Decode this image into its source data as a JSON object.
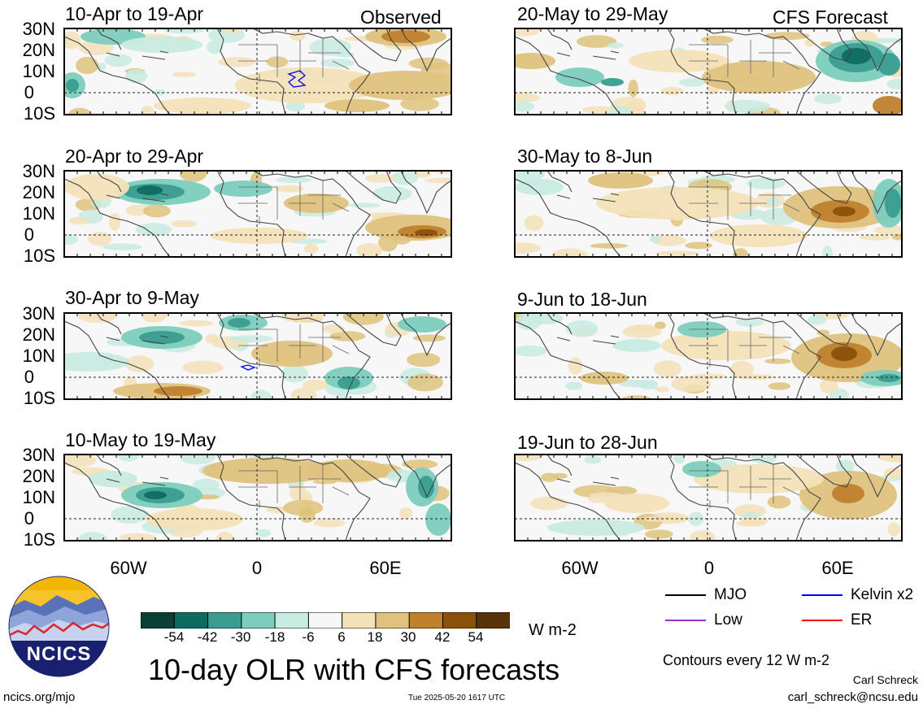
{
  "figure": {
    "title": "10-day OLR with CFS forecasts",
    "units": "W m-2",
    "contour_note": "Contours every 12 W m-2",
    "author": "Carl Schreck",
    "email": "carl_schreck@ncsu.edu",
    "site": "ncics.org/mjo",
    "timestamp": "Tue 2025-05-20 1617 UTC",
    "logo_text": "NCICS"
  },
  "labels": {
    "observed": "Observed",
    "forecast": "CFS Forecast",
    "lat_ticks": [
      "30N",
      "20N",
      "10N",
      "0",
      "10S"
    ],
    "lon_ticks": [
      "60W",
      "0",
      "60E"
    ]
  },
  "panels_observed": [
    {
      "title": "10-Apr to 19-Apr"
    },
    {
      "title": "20-Apr to 29-Apr"
    },
    {
      "title": "30-Apr to 9-May"
    },
    {
      "title": "10-May to 19-May"
    }
  ],
  "panels_forecast": [
    {
      "title": "20-May to 29-May"
    },
    {
      "title": "30-May to 8-Jun"
    },
    {
      "title": "9-Jun to 18-Jun"
    },
    {
      "title": "19-Jun to 28-Jun"
    }
  ],
  "colorbar": {
    "tick_labels": [
      "-54",
      "-42",
      "-30",
      "-18",
      "-6",
      "6",
      "18",
      "30",
      "42",
      "54"
    ],
    "colors": [
      "#0a3f36",
      "#0e6b60",
      "#3a9d8f",
      "#7ccdbd",
      "#c8ebe2",
      "#f7f7f7",
      "#f3e1b8",
      "#dfc27d",
      "#bf812d",
      "#8c510a",
      "#573307"
    ]
  },
  "legend": [
    {
      "label": "MJO",
      "color": "#000000"
    },
    {
      "label": "Kelvin x2",
      "color": "#0000ff"
    },
    {
      "label": "Low",
      "color": "#9933cc"
    },
    {
      "label": "ER",
      "color": "#ff0000"
    }
  ]
}
